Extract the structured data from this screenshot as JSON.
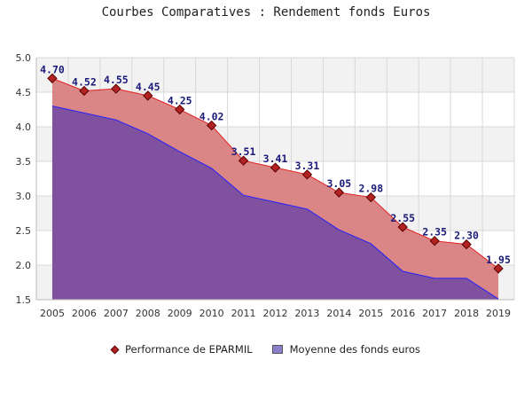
{
  "chart_data": {
    "type": "area",
    "title": "Courbes Comparatives : Rendement fonds Euros",
    "xlabel": "",
    "ylabel": "",
    "categories": [
      "2005",
      "2006",
      "2007",
      "2008",
      "2009",
      "2010",
      "2011",
      "2012",
      "2013",
      "2014",
      "2015",
      "2016",
      "2017",
      "2018",
      "2019"
    ],
    "ylim": [
      1.5,
      5.0
    ],
    "y_ticks": [
      "1.5",
      "2.0",
      "2.5",
      "3.0",
      "3.5",
      "4.0",
      "4.5",
      "5.0"
    ],
    "grid": true,
    "legend_position": "bottom",
    "series": [
      {
        "name": "Performance de EPARMIL",
        "values": [
          4.7,
          4.52,
          4.55,
          4.45,
          4.25,
          4.02,
          3.51,
          3.41,
          3.31,
          3.05,
          2.98,
          2.55,
          2.35,
          2.3,
          1.95
        ],
        "labels": [
          "4.70",
          "4.52",
          "4.55",
          "4.45",
          "4.25",
          "4.02",
          "3.51",
          "3.41",
          "3.31",
          "3.05",
          "2.98",
          "2.55",
          "2.35",
          "2.30",
          "1.95"
        ],
        "line_color": "#e02020",
        "fill_color": "#d98080",
        "marker_color": "#b22222"
      },
      {
        "name": "Moyenne des fonds euros",
        "values": [
          4.3,
          4.2,
          4.1,
          3.9,
          3.64,
          3.4,
          3.01,
          2.91,
          2.81,
          2.51,
          2.31,
          1.91,
          1.81,
          1.81,
          1.51
        ],
        "line_color": "#2020ff",
        "fill_color": "#7b4ea0"
      }
    ]
  }
}
